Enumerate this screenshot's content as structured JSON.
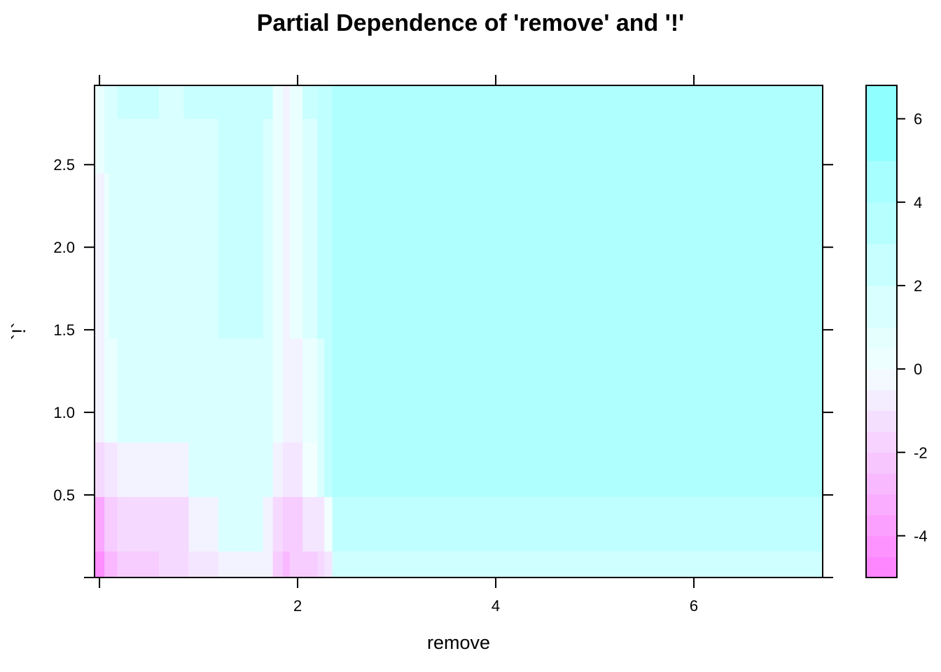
{
  "chart_data": {
    "type": "heatmap",
    "title": "Partial Dependence  of 'remove' and '!'",
    "xlabel": "remove",
    "ylabel": "`!`",
    "xlim": [
      -0.05,
      7.3
    ],
    "ylim": [
      0.0,
      2.98
    ],
    "x_ticks": [
      {
        "value": 0,
        "label": ""
      },
      {
        "value": 2,
        "label": "2"
      },
      {
        "value": 4,
        "label": "4"
      },
      {
        "value": 6,
        "label": "6"
      }
    ],
    "y_ticks": [
      {
        "value": 0.0,
        "label": ""
      },
      {
        "value": 0.5,
        "label": "0.5"
      },
      {
        "value": 1.0,
        "label": "1.0"
      },
      {
        "value": 1.5,
        "label": "1.5"
      },
      {
        "value": 2.0,
        "label": "2.0"
      },
      {
        "value": 2.5,
        "label": "2.5"
      }
    ],
    "x_breaks": [
      -0.05,
      0.05,
      0.1,
      0.18,
      0.25,
      0.6,
      0.85,
      0.9,
      1.2,
      1.65,
      1.75,
      1.85,
      1.92,
      2.05,
      2.2,
      2.27,
      2.35,
      7.3
    ],
    "y_breaks": [
      0.0,
      0.16,
      0.49,
      0.82,
      1.45,
      2.45,
      2.78,
      2.98
    ],
    "z": [
      [
        -4.5,
        -2.8,
        -2.8,
        -2.0,
        -2.0,
        -1.5,
        -1.5,
        -1.0,
        -0.5,
        -0.5,
        -2.0,
        -2.8,
        -2.0,
        -2.0,
        -1.5,
        -1.0,
        2.0
      ],
      [
        -3.5,
        -2.0,
        -2.0,
        -1.5,
        -1.5,
        -1.5,
        -1.5,
        -0.5,
        1.5,
        -0.5,
        -1.5,
        -2.0,
        -2.0,
        -1.0,
        -1.0,
        0.0,
        3.0
      ],
      [
        -1.5,
        -1.0,
        -1.0,
        -0.5,
        -0.5,
        -0.5,
        -0.5,
        1.5,
        1.5,
        1.5,
        -0.5,
        -1.0,
        -1.0,
        0.0,
        1.5,
        3.0,
        4.0
      ],
      [
        -0.5,
        0.5,
        0.5,
        1.5,
        1.5,
        1.5,
        1.5,
        1.5,
        1.5,
        1.5,
        0.5,
        -0.5,
        -0.5,
        0.5,
        1.5,
        3.0,
        4.0
      ],
      [
        -0.5,
        0.5,
        1.5,
        1.5,
        1.5,
        1.5,
        1.5,
        1.5,
        2.5,
        1.5,
        0.5,
        -0.5,
        0.5,
        1.5,
        3.0,
        3.0,
        4.0
      ],
      [
        0.5,
        1.5,
        1.5,
        1.5,
        1.5,
        1.5,
        1.5,
        1.5,
        2.5,
        1.5,
        0.5,
        -0.5,
        0.5,
        1.5,
        3.0,
        3.0,
        4.0
      ],
      [
        0.5,
        1.5,
        1.5,
        2.5,
        2.5,
        1.5,
        2.5,
        2.5,
        2.5,
        2.5,
        0.5,
        -0.5,
        0.5,
        2.5,
        3.0,
        3.0,
        4.0
      ]
    ],
    "colorkey": {
      "min": -5,
      "max": 6.8,
      "levels": [
        -5,
        -4.5,
        -4,
        -3.5,
        -3,
        -2.5,
        -2,
        -1.5,
        -1,
        -0.5,
        0,
        0.5,
        1,
        2,
        3,
        4,
        5,
        6.8
      ],
      "ticks": [
        {
          "value": -4,
          "label": "-4"
        },
        {
          "value": -2,
          "label": "-2"
        },
        {
          "value": 0,
          "label": "0"
        },
        {
          "value": 2,
          "label": "2"
        },
        {
          "value": 4,
          "label": "4"
        },
        {
          "value": 6,
          "label": "6"
        }
      ]
    },
    "colors": {
      "negative_end": "#ff80ff",
      "neutral": "#f2ffff",
      "positive_end": "#80ffff"
    },
    "grid": false,
    "legend": "right"
  }
}
